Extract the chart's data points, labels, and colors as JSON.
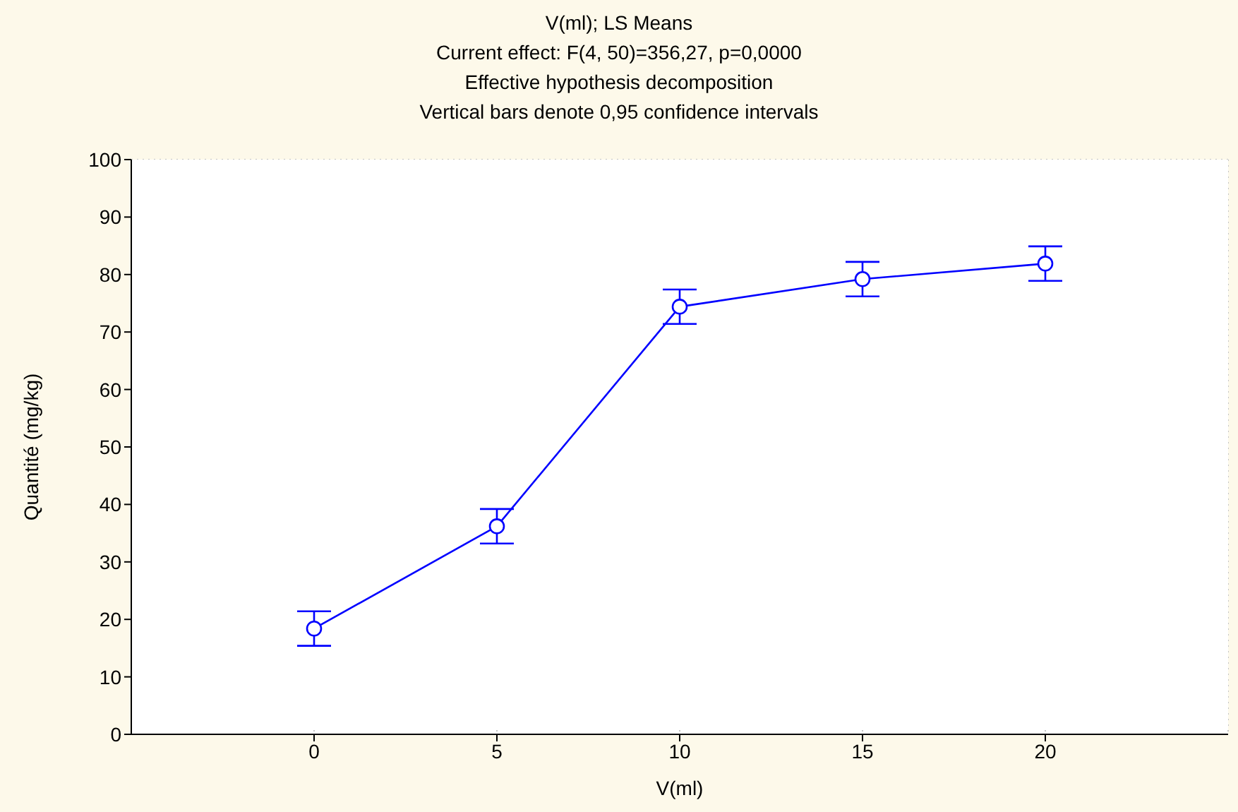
{
  "chart_data": {
    "type": "line",
    "title": "V(ml); LS Means",
    "subtitle": "Current effect: F(4, 50)=356,27, p=0,0000",
    "annotations": [
      "Effective hypothesis decomposition",
      "Vertical bars denote 0,95 confidence intervals"
    ],
    "xlabel": "V(ml)",
    "ylabel": "Quantité (mg/kg)",
    "x": [
      0,
      5,
      10,
      15,
      20
    ],
    "series": [
      {
        "color": "#0000ff",
        "values": [
          18.4,
          36.2,
          74.4,
          79.2,
          81.9
        ],
        "errors": [
          3,
          3,
          3,
          3,
          3
        ]
      }
    ],
    "xlim": [
      -5,
      25
    ],
    "xticks": [
      0,
      5,
      10,
      15,
      20
    ],
    "ylim": [
      0,
      100
    ],
    "yticks": [
      0,
      10,
      20,
      30,
      40,
      50,
      60,
      70,
      80,
      90,
      100
    ],
    "grid": true,
    "marker": "circle",
    "line_style": "solid",
    "legend": false
  }
}
